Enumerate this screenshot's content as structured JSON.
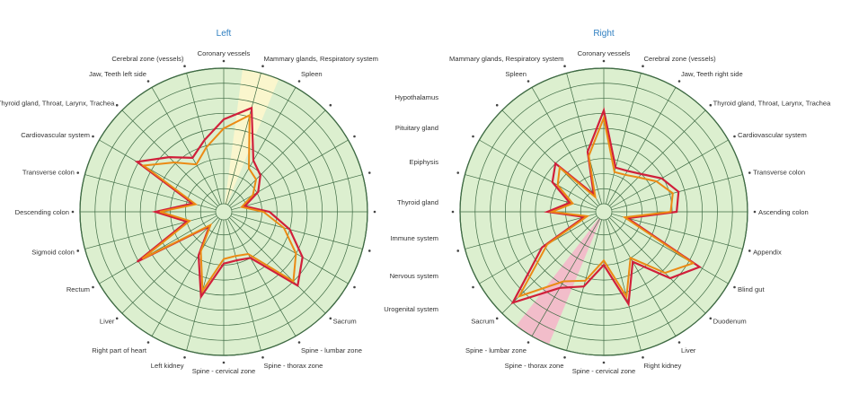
{
  "colors": {
    "disc": "#dcefcf",
    "grid": "#3f6b44",
    "series_outer": "#d11f3a",
    "series_inner": "#eb8a14",
    "highlight_left": "#fbf6cc",
    "highlight_right": "#f2b9c9",
    "dot": "#444444",
    "title": "#2f7fc1"
  },
  "chart_data": [
    {
      "type": "radar",
      "title": "Left",
      "rings": 9,
      "grid": true,
      "highlight_axis": 1,
      "axes": [
        "Coronary vessels",
        "Mammary glands, Respiratory system",
        "Spleen",
        "",
        "",
        "",
        "",
        "",
        "",
        "Sacrum",
        "Spine - lumbar zone",
        "Spine - thorax zone",
        "Spine - cervical zone",
        "Left kidney",
        "Right part of heart",
        "Liver",
        "Rectum",
        "Sigmoid colon",
        "Descending colon",
        "Transverse colon",
        "Cardiovascular system",
        "Thyroid gland, Throat, Larynx, Trachea",
        "Jaw, Teeth left side",
        "Cerebral zone (vessels)"
      ],
      "ylim": [
        0,
        9
      ],
      "series": [
        {
          "values": [
            5.6,
            6.6,
            3.4,
            2.9,
            2.1,
            0.9,
            2.5,
            4.0,
            5.5,
            6.4,
            3.0,
            2.8,
            2.9,
            5.3,
            2.8,
            0.8,
            6.1,
            2.0,
            4.0,
            1.6,
            6.1,
            4.6,
            3.6,
            4.4
          ]
        },
        {
          "values": [
            5.0,
            6.1,
            2.8,
            2.5,
            1.7,
            0.7,
            2.1,
            3.6,
            5.0,
            6.0,
            2.7,
            2.5,
            2.6,
            4.9,
            2.5,
            0.7,
            5.7,
            1.8,
            3.7,
            1.4,
            5.6,
            4.1,
            3.1,
            3.9
          ]
        }
      ]
    },
    {
      "type": "radar",
      "title": "Right",
      "rings": 9,
      "grid": true,
      "highlight_axis": 14,
      "axes": [
        "Coronary vessels",
        "Cerebral zone (vessels)",
        "Jaw, Teeth right side",
        "Thyroid gland, Throat, Larynx, Trachea",
        "Cardiovascular system",
        "Transverse colon",
        "Ascending colon",
        "Appendix",
        "Blind gut",
        "Duodenum",
        "Liver",
        "Right kidney",
        "Spine - cervical zone",
        "Spine - thorax zone",
        "Spine - lumbar zone",
        "Sacrum",
        "",
        "",
        "",
        "",
        "",
        "",
        "Spleen",
        "Mammary glands, Respiratory system"
      ],
      "ylim": [
        0,
        9
      ],
      "series": [
        {
          "values": [
            6.2,
            2.5,
            2.6,
            3.0,
            3.9,
            4.6,
            4.3,
            1.1,
            6.8,
            5.7,
            3.3,
            5.8,
            3.0,
            4.6,
            5.3,
            8.0,
            4.2,
            0.8,
            3.2,
            1.8,
            3.4,
            4.0,
            0.8,
            3.6
          ]
        },
        {
          "values": [
            5.7,
            2.2,
            2.3,
            2.7,
            3.5,
            4.2,
            3.9,
            0.9,
            6.3,
            5.2,
            3.0,
            5.3,
            2.7,
            4.2,
            4.8,
            7.4,
            3.8,
            0.6,
            2.9,
            1.6,
            3.0,
            3.6,
            0.6,
            3.3
          ]
        }
      ]
    }
  ],
  "side_labels": [
    "Hypothalamus",
    "Pituitary gland",
    "Epiphysis",
    "Thyroid gland",
    "Immune system",
    "Nervous system",
    "Urogenital system"
  ]
}
